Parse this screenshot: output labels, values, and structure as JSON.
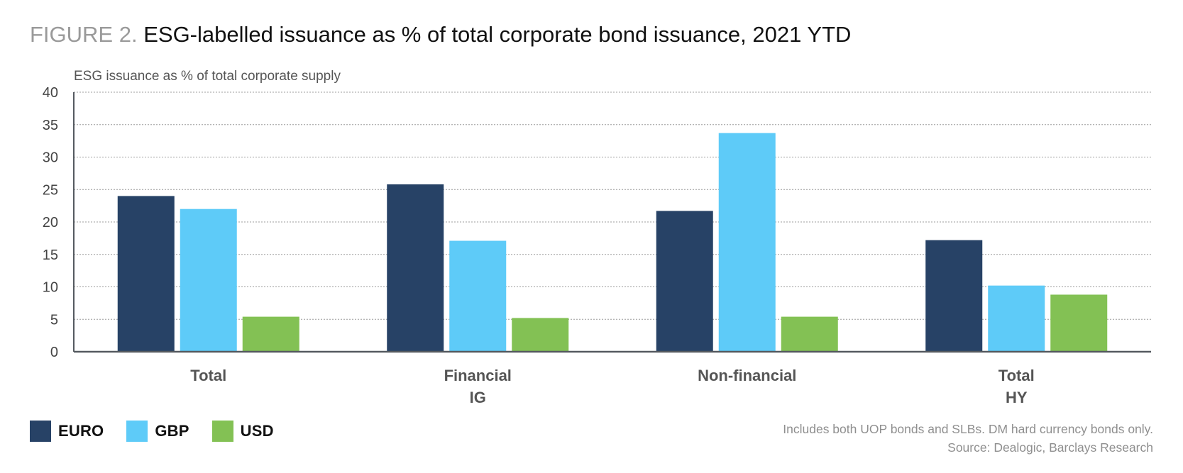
{
  "figure": {
    "prefix": "FIGURE 2.",
    "title": "ESG-labelled issuance as % of total corporate bond issuance, 2021 YTD"
  },
  "chart_data": {
    "type": "bar",
    "title": "ESG-labelled issuance as % of total corporate bond issuance, 2021 YTD",
    "ylabel": "ESG issuance as % of total corporate supply",
    "xlabel": "",
    "ylim": [
      0,
      40
    ],
    "yticks": [
      0,
      5,
      10,
      15,
      20,
      25,
      30,
      35,
      40
    ],
    "grid": true,
    "legend_position": "bottom-left",
    "categories": [
      [
        "Total"
      ],
      [
        "Financial",
        "IG"
      ],
      [
        "Non-financial"
      ],
      [
        "Total",
        "HY"
      ]
    ],
    "series": [
      {
        "name": "EURO",
        "color": "#274266",
        "values": [
          24.0,
          25.8,
          21.7,
          17.2
        ]
      },
      {
        "name": "GBP",
        "color": "#5ecbf8",
        "values": [
          22.0,
          17.1,
          33.7,
          10.2
        ]
      },
      {
        "name": "USD",
        "color": "#83c154",
        "values": [
          5.4,
          5.2,
          5.4,
          8.8
        ]
      }
    ]
  },
  "notes": {
    "line1": "Includes both UOP bonds and SLBs. DM hard currency bonds only.",
    "line2": "Source: Dealogic, Barclays Research"
  },
  "colors": {
    "axis": "#555a60",
    "grid": "#9c9c9c",
    "tick_text": "#444444",
    "category_text": "#555555"
  }
}
